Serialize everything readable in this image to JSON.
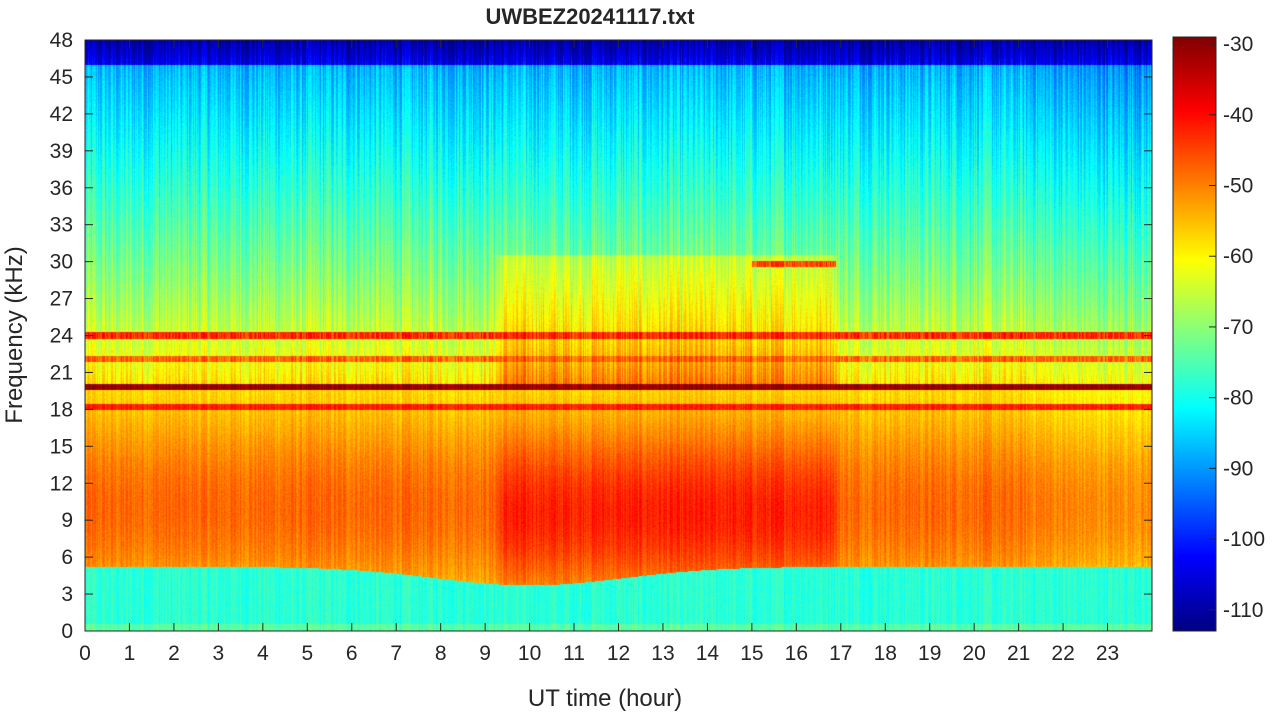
{
  "chart_data": {
    "type": "heatmap",
    "title": "UWBEZ20241117.txt",
    "xlabel": "UT time (hour)",
    "ylabel": "Frequency (kHz)",
    "xlim": [
      0,
      24
    ],
    "ylim": [
      0,
      48
    ],
    "x_ticks": [
      0,
      1,
      2,
      3,
      4,
      5,
      6,
      7,
      8,
      9,
      10,
      11,
      12,
      13,
      14,
      15,
      16,
      17,
      18,
      19,
      20,
      21,
      22,
      23
    ],
    "y_ticks": [
      0,
      3,
      6,
      9,
      12,
      15,
      18,
      21,
      24,
      27,
      30,
      33,
      36,
      39,
      42,
      45,
      48
    ],
    "colorbar": {
      "colormap": "jet",
      "clim": [
        -113,
        -29
      ],
      "ticks": [
        -30,
        -40,
        -50,
        -60,
        -70,
        -80,
        -90,
        -100,
        -110
      ]
    },
    "features": {
      "background_high_freq_db": -88,
      "top_band_db": -110,
      "top_band_from_khz": 46,
      "low_freq_floor_khz": 4,
      "daytime_enhancement_hours": [
        9.3,
        16.9
      ],
      "transmitter_lines": [
        {
          "freq_khz": 19.8,
          "level_db": -31
        },
        {
          "freq_khz": 24.0,
          "level_db": -43
        },
        {
          "freq_khz": 22.1,
          "level_db": -48
        },
        {
          "freq_khz": 18.2,
          "level_db": -42
        },
        {
          "freq_khz": 29.8,
          "level_db": -45,
          "hours": [
            15.0,
            16.9
          ]
        }
      ]
    }
  }
}
